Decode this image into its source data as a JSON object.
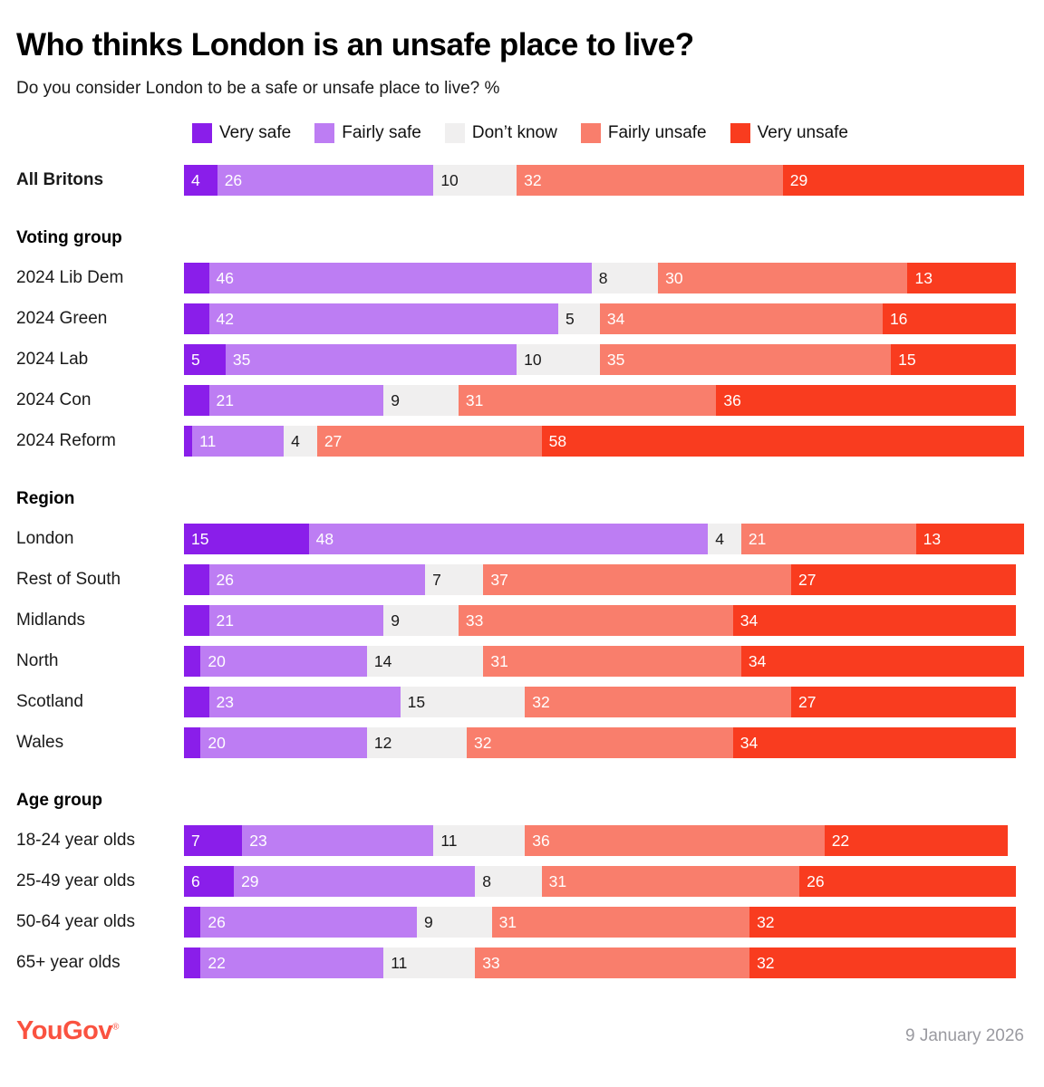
{
  "title": "Who thinks London is an unsafe place to live?",
  "subtitle": "Do you consider London to be a safe or unsafe place to live? %",
  "footer": {
    "logo": "YouGov",
    "logo_mark": "®",
    "logo_color": "#FA5240",
    "date": "9 January 2026"
  },
  "chart_data": {
    "type": "bar",
    "orientation": "horizontal",
    "stacked": true,
    "unit": "%",
    "max_scale": 101,
    "legend_position": "top",
    "series": [
      {
        "name": "Very safe",
        "color": "#8A1EEA",
        "label_color": "#ffffff"
      },
      {
        "name": "Fairly safe",
        "color": "#BD7DF3",
        "label_color": "#ffffff"
      },
      {
        "name": "Don’t know",
        "color": "#F0EFEF",
        "label_color": "#1a1a1a"
      },
      {
        "name": "Fairly unsafe",
        "color": "#F97E6C",
        "label_color": "#ffffff"
      },
      {
        "name": "Very unsafe",
        "color": "#F93C1F",
        "label_color": "#ffffff"
      }
    ],
    "sections": [
      {
        "header": null,
        "rows": [
          {
            "label": "All Britons",
            "bold": true,
            "values": [
              4,
              26,
              10,
              32,
              29
            ],
            "display": [
              "4",
              "26",
              "10",
              "32",
              "29"
            ]
          }
        ]
      },
      {
        "header": "Voting group",
        "rows": [
          {
            "label": "2024 Lib Dem",
            "bold": false,
            "values": [
              3,
              46,
              8,
              30,
              13
            ],
            "display": [
              "",
              "46",
              "8",
              "30",
              "13"
            ]
          },
          {
            "label": "2024 Green",
            "bold": false,
            "values": [
              3,
              42,
              5,
              34,
              16
            ],
            "display": [
              "",
              "42",
              "5",
              "34",
              "16"
            ]
          },
          {
            "label": "2024 Lab",
            "bold": false,
            "values": [
              5,
              35,
              10,
              35,
              15
            ],
            "display": [
              "5",
              "35",
              "10",
              "35",
              "15"
            ]
          },
          {
            "label": "2024 Con",
            "bold": false,
            "values": [
              3,
              21,
              9,
              31,
              36
            ],
            "display": [
              "",
              "21",
              "9",
              "31",
              "36"
            ]
          },
          {
            "label": "2024 Reform",
            "bold": false,
            "values": [
              1,
              11,
              4,
              27,
              58
            ],
            "display": [
              "",
              "11",
              "4",
              "27",
              "58"
            ]
          }
        ]
      },
      {
        "header": "Region",
        "rows": [
          {
            "label": "London",
            "bold": false,
            "values": [
              15,
              48,
              4,
              21,
              13
            ],
            "display": [
              "15",
              "48",
              "4",
              "21",
              "13"
            ]
          },
          {
            "label": "Rest of South",
            "bold": false,
            "values": [
              3,
              26,
              7,
              37,
              27
            ],
            "display": [
              "",
              "26",
              "7",
              "37",
              "27"
            ]
          },
          {
            "label": "Midlands",
            "bold": false,
            "values": [
              3,
              21,
              9,
              33,
              34
            ],
            "display": [
              "",
              "21",
              "9",
              "33",
              "34"
            ]
          },
          {
            "label": "North",
            "bold": false,
            "values": [
              2,
              20,
              14,
              31,
              34
            ],
            "display": [
              "",
              "20",
              "14",
              "31",
              "34"
            ]
          },
          {
            "label": "Scotland",
            "bold": false,
            "values": [
              3,
              23,
              15,
              32,
              27
            ],
            "display": [
              "",
              "23",
              "15",
              "32",
              "27"
            ]
          },
          {
            "label": "Wales",
            "bold": false,
            "values": [
              2,
              20,
              12,
              32,
              34
            ],
            "display": [
              "",
              "20",
              "12",
              "32",
              "34"
            ]
          }
        ]
      },
      {
        "header": "Age group",
        "rows": [
          {
            "label": "18-24 year olds",
            "bold": false,
            "values": [
              7,
              23,
              11,
              36,
              22
            ],
            "display": [
              "7",
              "23",
              "11",
              "36",
              "22"
            ]
          },
          {
            "label": "25-49 year olds",
            "bold": false,
            "values": [
              6,
              29,
              8,
              31,
              26
            ],
            "display": [
              "6",
              "29",
              "8",
              "31",
              "26"
            ]
          },
          {
            "label": "50-64 year olds",
            "bold": false,
            "values": [
              2,
              26,
              9,
              31,
              32
            ],
            "display": [
              "",
              "26",
              "9",
              "31",
              "32"
            ]
          },
          {
            "label": "65+ year olds",
            "bold": false,
            "values": [
              2,
              22,
              11,
              33,
              32
            ],
            "display": [
              "",
              "22",
              "11",
              "33",
              "32"
            ]
          }
        ]
      }
    ]
  }
}
